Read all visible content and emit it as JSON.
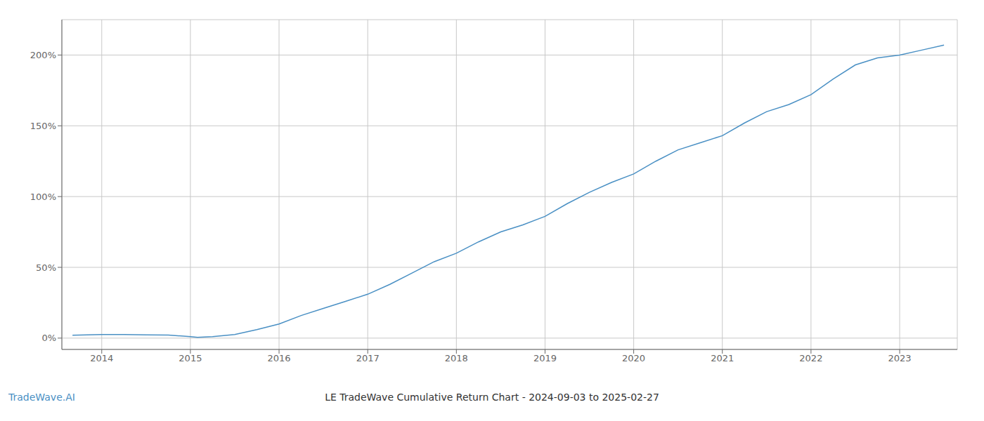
{
  "chart_data": {
    "type": "line",
    "title": "LE TradeWave Cumulative Return Chart - 2024-09-03 to 2025-02-27",
    "annotations": [
      {
        "text": "TradeWave.AI"
      }
    ],
    "color": "#4a90c4",
    "grid": true,
    "x": [
      2013.67,
      2014.0,
      2014.25,
      2014.5,
      2014.75,
      2015.0,
      2015.08,
      2015.25,
      2015.5,
      2015.75,
      2016.0,
      2016.25,
      2016.5,
      2016.75,
      2017.0,
      2017.25,
      2017.5,
      2017.75,
      2018.0,
      2018.25,
      2018.5,
      2018.75,
      2019.0,
      2019.25,
      2019.5,
      2019.75,
      2020.0,
      2020.25,
      2020.5,
      2020.75,
      2021.0,
      2021.25,
      2021.5,
      2021.75,
      2022.0,
      2022.25,
      2022.5,
      2022.75,
      2023.0,
      2023.25,
      2023.5
    ],
    "values": [
      2.0,
      2.5,
      2.5,
      2.3,
      2.2,
      1.0,
      0.5,
      1.0,
      2.5,
      6.0,
      10.0,
      16.0,
      21.0,
      26.0,
      31.0,
      38.0,
      46.0,
      54.0,
      60.0,
      68.0,
      75.0,
      80.0,
      86.0,
      95.0,
      103.0,
      110.0,
      116.0,
      125.0,
      133.0,
      138.0,
      143.0,
      152.0,
      160.0,
      165.0,
      172.0,
      183.0,
      193.0,
      198.0,
      200.0,
      203.5,
      207.0
    ],
    "xlim": [
      2013.55,
      2023.65
    ],
    "xticks": [
      2014,
      2015,
      2016,
      2017,
      2018,
      2019,
      2020,
      2021,
      2022,
      2023
    ],
    "ylim": [
      -8,
      225
    ],
    "yticks": [
      {
        "value": 0,
        "label": "0%"
      },
      {
        "value": 50,
        "label": "50%"
      },
      {
        "value": 100,
        "label": "100%"
      },
      {
        "value": 150,
        "label": "150%"
      },
      {
        "value": 200,
        "label": "200%"
      }
    ]
  }
}
